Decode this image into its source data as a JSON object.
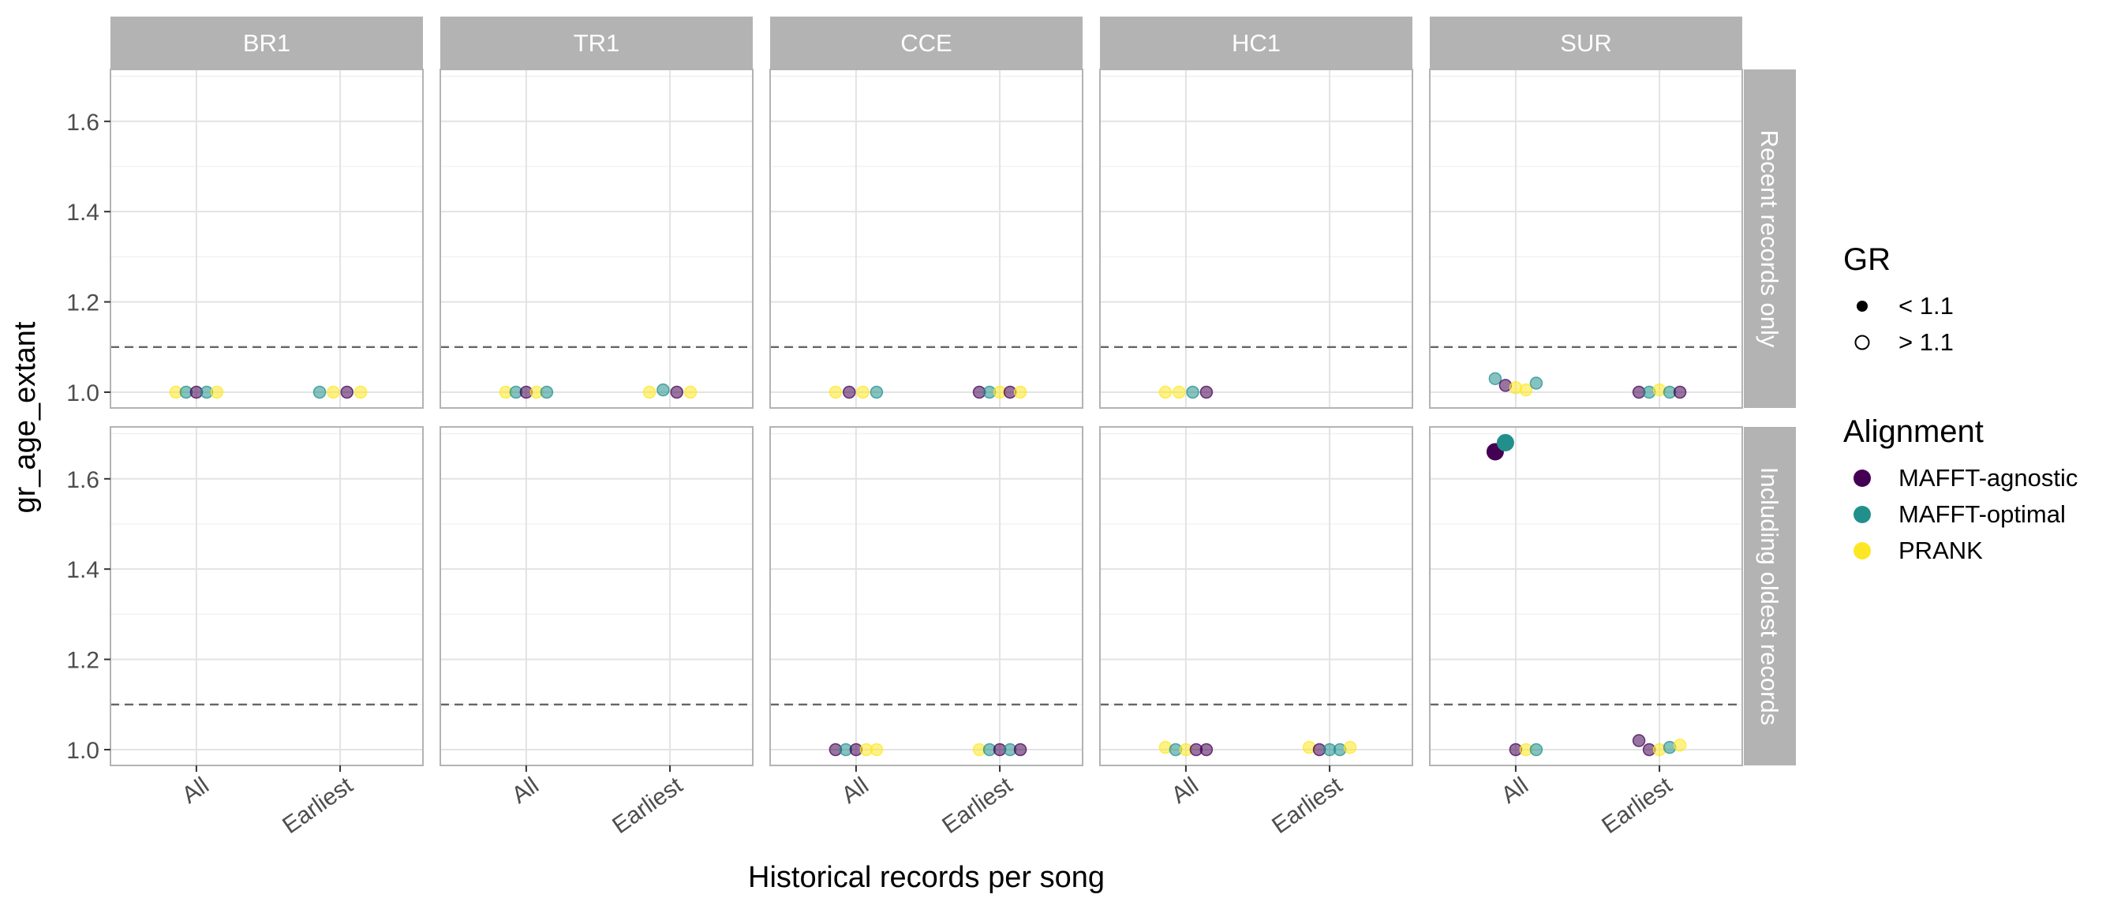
{
  "chart_data": {
    "type": "scatter",
    "facet_columns": [
      "BR1",
      "TR1",
      "CCE",
      "HC1",
      "SUR"
    ],
    "facet_rows": [
      "Recent records only",
      "Including oldest records"
    ],
    "xlabel": "Historical records per song",
    "ylabel": "gr_age_extant",
    "x_categories": [
      "All",
      "Earliest"
    ],
    "ylim": [
      0.965,
      1.715
    ],
    "y_ticks": [
      "1.0",
      "1.2",
      "1.4",
      "1.6"
    ],
    "y_tick_values": [
      1.0,
      1.2,
      1.4,
      1.6
    ],
    "reference_line": 1.1,
    "grid": true,
    "legend_placement": "right",
    "legends": [
      {
        "title": "GR",
        "entries": [
          {
            "label": "< 1.1",
            "shape": "filled-circle"
          },
          {
            "label": "> 1.1",
            "shape": "open-circle"
          }
        ]
      },
      {
        "title": "Alignment",
        "entries": [
          {
            "label": "MAFFT-agnostic",
            "color": "#440154"
          },
          {
            "label": "MAFFT-optimal",
            "color": "#21908C"
          },
          {
            "label": "PRANK",
            "color": "#FDE725"
          }
        ]
      }
    ],
    "colors": {
      "MAFFT-agnostic": "#440154",
      "MAFFT-optimal": "#21908C",
      "PRANK": "#FDE725"
    },
    "series": [
      {
        "facet_col": "BR1",
        "facet_row": "Recent records only",
        "points": [
          {
            "x": "All",
            "y": 1.0,
            "alignment": "PRANK"
          },
          {
            "x": "All",
            "y": 1.0,
            "alignment": "MAFFT-optimal"
          },
          {
            "x": "All",
            "y": 1.0,
            "alignment": "MAFFT-agnostic"
          },
          {
            "x": "All",
            "y": 1.0,
            "alignment": "MAFFT-optimal"
          },
          {
            "x": "All",
            "y": 1.0,
            "alignment": "PRANK"
          },
          {
            "x": "Earliest",
            "y": 1.0,
            "alignment": "MAFFT-optimal"
          },
          {
            "x": "Earliest",
            "y": 1.0,
            "alignment": "PRANK"
          },
          {
            "x": "Earliest",
            "y": 1.0,
            "alignment": "MAFFT-agnostic"
          },
          {
            "x": "Earliest",
            "y": 1.0,
            "alignment": "PRANK"
          }
        ]
      },
      {
        "facet_col": "TR1",
        "facet_row": "Recent records only",
        "points": [
          {
            "x": "All",
            "y": 1.0,
            "alignment": "PRANK"
          },
          {
            "x": "All",
            "y": 1.0,
            "alignment": "MAFFT-optimal"
          },
          {
            "x": "All",
            "y": 1.0,
            "alignment": "MAFFT-agnostic"
          },
          {
            "x": "All",
            "y": 1.0,
            "alignment": "PRANK"
          },
          {
            "x": "All",
            "y": 1.0,
            "alignment": "MAFFT-optimal"
          },
          {
            "x": "Earliest",
            "y": 1.0,
            "alignment": "PRANK"
          },
          {
            "x": "Earliest",
            "y": 1.005,
            "alignment": "MAFFT-optimal"
          },
          {
            "x": "Earliest",
            "y": 1.0,
            "alignment": "MAFFT-agnostic"
          },
          {
            "x": "Earliest",
            "y": 1.0,
            "alignment": "PRANK"
          }
        ]
      },
      {
        "facet_col": "CCE",
        "facet_row": "Recent records only",
        "points": [
          {
            "x": "All",
            "y": 1.0,
            "alignment": "PRANK"
          },
          {
            "x": "All",
            "y": 1.0,
            "alignment": "MAFFT-agnostic"
          },
          {
            "x": "All",
            "y": 1.0,
            "alignment": "PRANK"
          },
          {
            "x": "All",
            "y": 1.0,
            "alignment": "MAFFT-optimal"
          },
          {
            "x": "Earliest",
            "y": 1.0,
            "alignment": "MAFFT-agnostic"
          },
          {
            "x": "Earliest",
            "y": 1.0,
            "alignment": "MAFFT-optimal"
          },
          {
            "x": "Earliest",
            "y": 1.0,
            "alignment": "PRANK"
          },
          {
            "x": "Earliest",
            "y": 1.0,
            "alignment": "MAFFT-agnostic"
          },
          {
            "x": "Earliest",
            "y": 1.0,
            "alignment": "PRANK"
          }
        ]
      },
      {
        "facet_col": "HC1",
        "facet_row": "Recent records only",
        "points": [
          {
            "x": "All",
            "y": 1.0,
            "alignment": "PRANK"
          },
          {
            "x": "All",
            "y": 1.0,
            "alignment": "PRANK"
          },
          {
            "x": "All",
            "y": 1.0,
            "alignment": "MAFFT-optimal"
          },
          {
            "x": "All",
            "y": 1.0,
            "alignment": "MAFFT-agnostic"
          }
        ]
      },
      {
        "facet_col": "SUR",
        "facet_row": "Recent records only",
        "points": [
          {
            "x": "All",
            "y": 1.03,
            "alignment": "MAFFT-optimal"
          },
          {
            "x": "All",
            "y": 1.015,
            "alignment": "MAFFT-agnostic"
          },
          {
            "x": "All",
            "y": 1.01,
            "alignment": "PRANK"
          },
          {
            "x": "All",
            "y": 1.005,
            "alignment": "PRANK"
          },
          {
            "x": "All",
            "y": 1.02,
            "alignment": "MAFFT-optimal"
          },
          {
            "x": "Earliest",
            "y": 1.0,
            "alignment": "MAFFT-agnostic"
          },
          {
            "x": "Earliest",
            "y": 1.0,
            "alignment": "MAFFT-optimal"
          },
          {
            "x": "Earliest",
            "y": 1.005,
            "alignment": "PRANK"
          },
          {
            "x": "Earliest",
            "y": 1.0,
            "alignment": "MAFFT-optimal"
          },
          {
            "x": "Earliest",
            "y": 1.0,
            "alignment": "MAFFT-agnostic"
          }
        ]
      },
      {
        "facet_col": "CCE",
        "facet_row": "Including oldest records",
        "points": [
          {
            "x": "All",
            "y": 1.0,
            "alignment": "MAFFT-agnostic"
          },
          {
            "x": "All",
            "y": 1.0,
            "alignment": "MAFFT-optimal"
          },
          {
            "x": "All",
            "y": 1.0,
            "alignment": "MAFFT-agnostic"
          },
          {
            "x": "All",
            "y": 1.0,
            "alignment": "PRANK"
          },
          {
            "x": "All",
            "y": 1.0,
            "alignment": "PRANK"
          },
          {
            "x": "Earliest",
            "y": 1.0,
            "alignment": "PRANK"
          },
          {
            "x": "Earliest",
            "y": 1.0,
            "alignment": "MAFFT-optimal"
          },
          {
            "x": "Earliest",
            "y": 1.0,
            "alignment": "MAFFT-agnostic"
          },
          {
            "x": "Earliest",
            "y": 1.0,
            "alignment": "MAFFT-optimal"
          },
          {
            "x": "Earliest",
            "y": 1.0,
            "alignment": "MAFFT-agnostic"
          }
        ]
      },
      {
        "facet_col": "HC1",
        "facet_row": "Including oldest records",
        "points": [
          {
            "x": "All",
            "y": 1.005,
            "alignment": "PRANK"
          },
          {
            "x": "All",
            "y": 1.0,
            "alignment": "MAFFT-optimal"
          },
          {
            "x": "All",
            "y": 1.0,
            "alignment": "PRANK"
          },
          {
            "x": "All",
            "y": 1.0,
            "alignment": "MAFFT-agnostic"
          },
          {
            "x": "All",
            "y": 1.0,
            "alignment": "MAFFT-agnostic"
          },
          {
            "x": "Earliest",
            "y": 1.005,
            "alignment": "PRANK"
          },
          {
            "x": "Earliest",
            "y": 1.0,
            "alignment": "MAFFT-agnostic"
          },
          {
            "x": "Earliest",
            "y": 1.0,
            "alignment": "MAFFT-optimal"
          },
          {
            "x": "Earliest",
            "y": 1.0,
            "alignment": "MAFFT-optimal"
          },
          {
            "x": "Earliest",
            "y": 1.005,
            "alignment": "PRANK"
          }
        ]
      },
      {
        "facet_col": "SUR",
        "facet_row": "Including oldest records",
        "points": [
          {
            "x": "All",
            "y": 1.66,
            "alignment": "MAFFT-agnostic",
            "gr": "> 1.1"
          },
          {
            "x": "All",
            "y": 1.68,
            "alignment": "MAFFT-optimal",
            "gr": "> 1.1"
          },
          {
            "x": "All",
            "y": 1.0,
            "alignment": "MAFFT-agnostic"
          },
          {
            "x": "All",
            "y": 1.0,
            "alignment": "PRANK"
          },
          {
            "x": "All",
            "y": 1.0,
            "alignment": "MAFFT-optimal"
          },
          {
            "x": "Earliest",
            "y": 1.02,
            "alignment": "MAFFT-agnostic"
          },
          {
            "x": "Earliest",
            "y": 1.0,
            "alignment": "MAFFT-agnostic"
          },
          {
            "x": "Earliest",
            "y": 1.0,
            "alignment": "PRANK"
          },
          {
            "x": "Earliest",
            "y": 1.005,
            "alignment": "MAFFT-optimal"
          },
          {
            "x": "Earliest",
            "y": 1.01,
            "alignment": "PRANK"
          }
        ]
      }
    ]
  }
}
